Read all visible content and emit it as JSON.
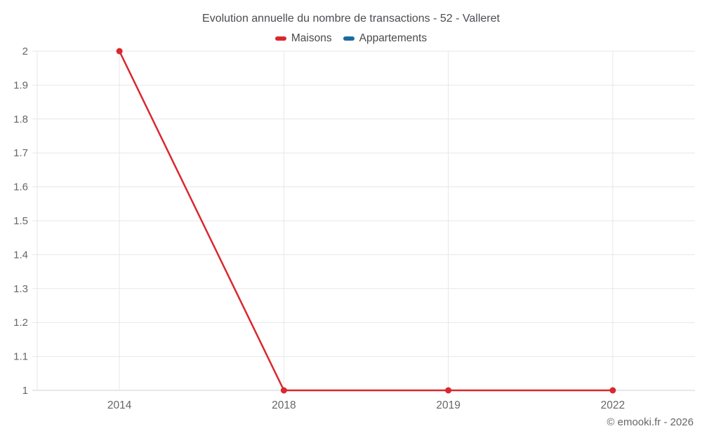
{
  "title": "Evolution annuelle du nombre de transactions - 52 - Valleret",
  "footer": "© emooki.fr - 2026",
  "colors": {
    "grid": "#e7e7e7",
    "axis_line": "#cfd2d6",
    "tick_text": "#666666",
    "title_text": "#4c4c52",
    "background": "#ffffff",
    "maisons": "#d9282e",
    "appartements": "#1a6b9e"
  },
  "chart_data": {
    "type": "line",
    "title": "Evolution annuelle du nombre de transactions - 52 - Valleret",
    "xlabel": "",
    "ylabel": "",
    "categories": [
      "2014",
      "2018",
      "2019",
      "2022"
    ],
    "series": [
      {
        "name": "Maisons",
        "color": "#d9282e",
        "values": [
          2,
          1,
          1,
          1
        ]
      },
      {
        "name": "Appartements",
        "color": "#1a6b9e",
        "values": []
      }
    ],
    "ylim": [
      1,
      2
    ],
    "y_ticks": [
      {
        "value": 2,
        "label": "2"
      },
      {
        "value": 1.9,
        "label": "1.9"
      },
      {
        "value": 1.8,
        "label": "1.8"
      },
      {
        "value": 1.7,
        "label": "1.7"
      },
      {
        "value": 1.6,
        "label": "1.6"
      },
      {
        "value": 1.5,
        "label": "1.5"
      },
      {
        "value": 1.4,
        "label": "1.4"
      },
      {
        "value": 1.3,
        "label": "1.3"
      },
      {
        "value": 1.2,
        "label": "1.2"
      },
      {
        "value": 1.1,
        "label": "1.1"
      },
      {
        "value": 1,
        "label": "1"
      }
    ],
    "grid": true,
    "legend_position": "top"
  }
}
